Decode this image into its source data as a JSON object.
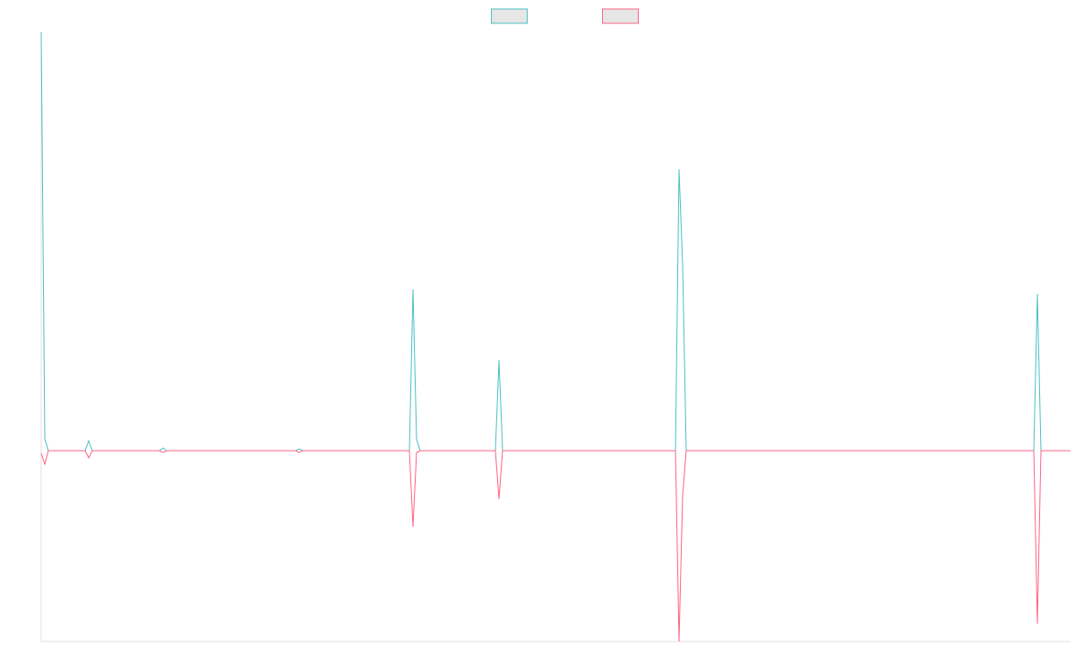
{
  "chart_data": {
    "type": "line",
    "legend": "top",
    "x": [
      46,
      50,
      54,
      95,
      99,
      103,
      178,
      182,
      186,
      330,
      334,
      338,
      457,
      461,
      465,
      469,
      553,
      557,
      561,
      754,
      758,
      762,
      766,
      1154,
      1158,
      1162,
      1195
    ],
    "series": [
      {
        "color": "#4bc0c0",
        "values": [
          467,
          13,
          0,
          0,
          11,
          0,
          0,
          3,
          0,
          0,
          2,
          0,
          0,
          180,
          13,
          0,
          0,
          101,
          0,
          0,
          314,
          208,
          0,
          0,
          175,
          0,
          0
        ]
      },
      {
        "color": "#ff6384",
        "values": [
          -3,
          -15,
          0,
          0,
          -8,
          0,
          0,
          -2,
          0,
          0,
          -2,
          0,
          0,
          -85,
          -2,
          0,
          0,
          -54,
          0,
          0,
          -213,
          -50,
          0,
          0,
          -193,
          0,
          0
        ]
      }
    ],
    "xlim": [
      46,
      1195
    ],
    "ylim": [
      -213,
      467
    ]
  }
}
